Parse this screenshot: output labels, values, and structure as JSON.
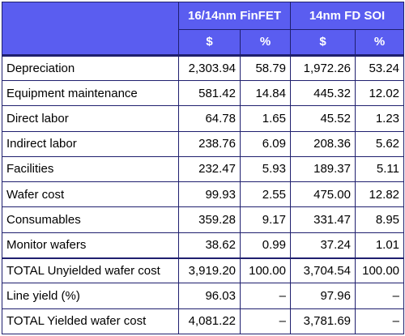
{
  "header": {
    "group1": "16/14nm FinFET",
    "group2": "14nm FD SOI",
    "sub": [
      "$",
      "%",
      "$",
      "%"
    ]
  },
  "rows": [
    {
      "label": "Depreciation",
      "v1": "2,303.94",
      "p1": "58.79",
      "v2": "1,972.26",
      "p2": "53.24"
    },
    {
      "label": "Equipment maintenance",
      "v1": "581.42",
      "p1": "14.84",
      "v2": "445.32",
      "p2": "12.02"
    },
    {
      "label": "Direct labor",
      "v1": "64.78",
      "p1": "1.65",
      "v2": "45.52",
      "p2": "1.23"
    },
    {
      "label": "Indirect labor",
      "v1": "238.76",
      "p1": "6.09",
      "v2": "208.36",
      "p2": "5.62"
    },
    {
      "label": "Facilities",
      "v1": "232.47",
      "p1": "5.93",
      "v2": "189.37",
      "p2": "5.11"
    },
    {
      "label": "Wafer cost",
      "v1": "99.93",
      "p1": "2.55",
      "v2": "475.00",
      "p2": "12.82"
    },
    {
      "label": "Consumables",
      "v1": "359.28",
      "p1": "9.17",
      "v2": "331.47",
      "p2": "8.95"
    },
    {
      "label": "Monitor wafers",
      "v1": "38.62",
      "p1": "0.99",
      "v2": "37.24",
      "p2": "1.01"
    },
    {
      "label": "TOTAL Unyielded wafer cost",
      "v1": "3,919.20",
      "p1": "100.00",
      "v2": "3,704.54",
      "p2": "100.00"
    },
    {
      "label": "Line yield (%)",
      "v1": "96.03",
      "p1": "–",
      "v2": "97.96",
      "p2": "–"
    },
    {
      "label": "TOTAL Yielded wafer cost",
      "v1": "4,081.22",
      "p1": "–",
      "v2": "3,781.69",
      "p2": "–"
    }
  ],
  "colors": {
    "header_bg": "#5a5df0",
    "header_text": "#ffffff",
    "border": "#1f1f6e"
  }
}
